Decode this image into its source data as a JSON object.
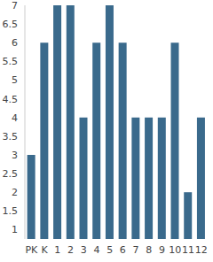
{
  "chart_data": {
    "type": "bar",
    "categories": [
      "PK",
      "K",
      "1",
      "2",
      "3",
      "4",
      "5",
      "6",
      "7",
      "8",
      "9",
      "10",
      "11",
      "12"
    ],
    "values": [
      3,
      6,
      7,
      7,
      4,
      6,
      7,
      6,
      4,
      4,
      4,
      6,
      2,
      4
    ],
    "color": "#3a6a8c",
    "ylim": [
      0.75,
      7
    ],
    "yticks": [
      1,
      1.5,
      2,
      2.5,
      3,
      3.5,
      4,
      4.5,
      5,
      5.5,
      6,
      6.5,
      7
    ],
    "grid": false
  }
}
